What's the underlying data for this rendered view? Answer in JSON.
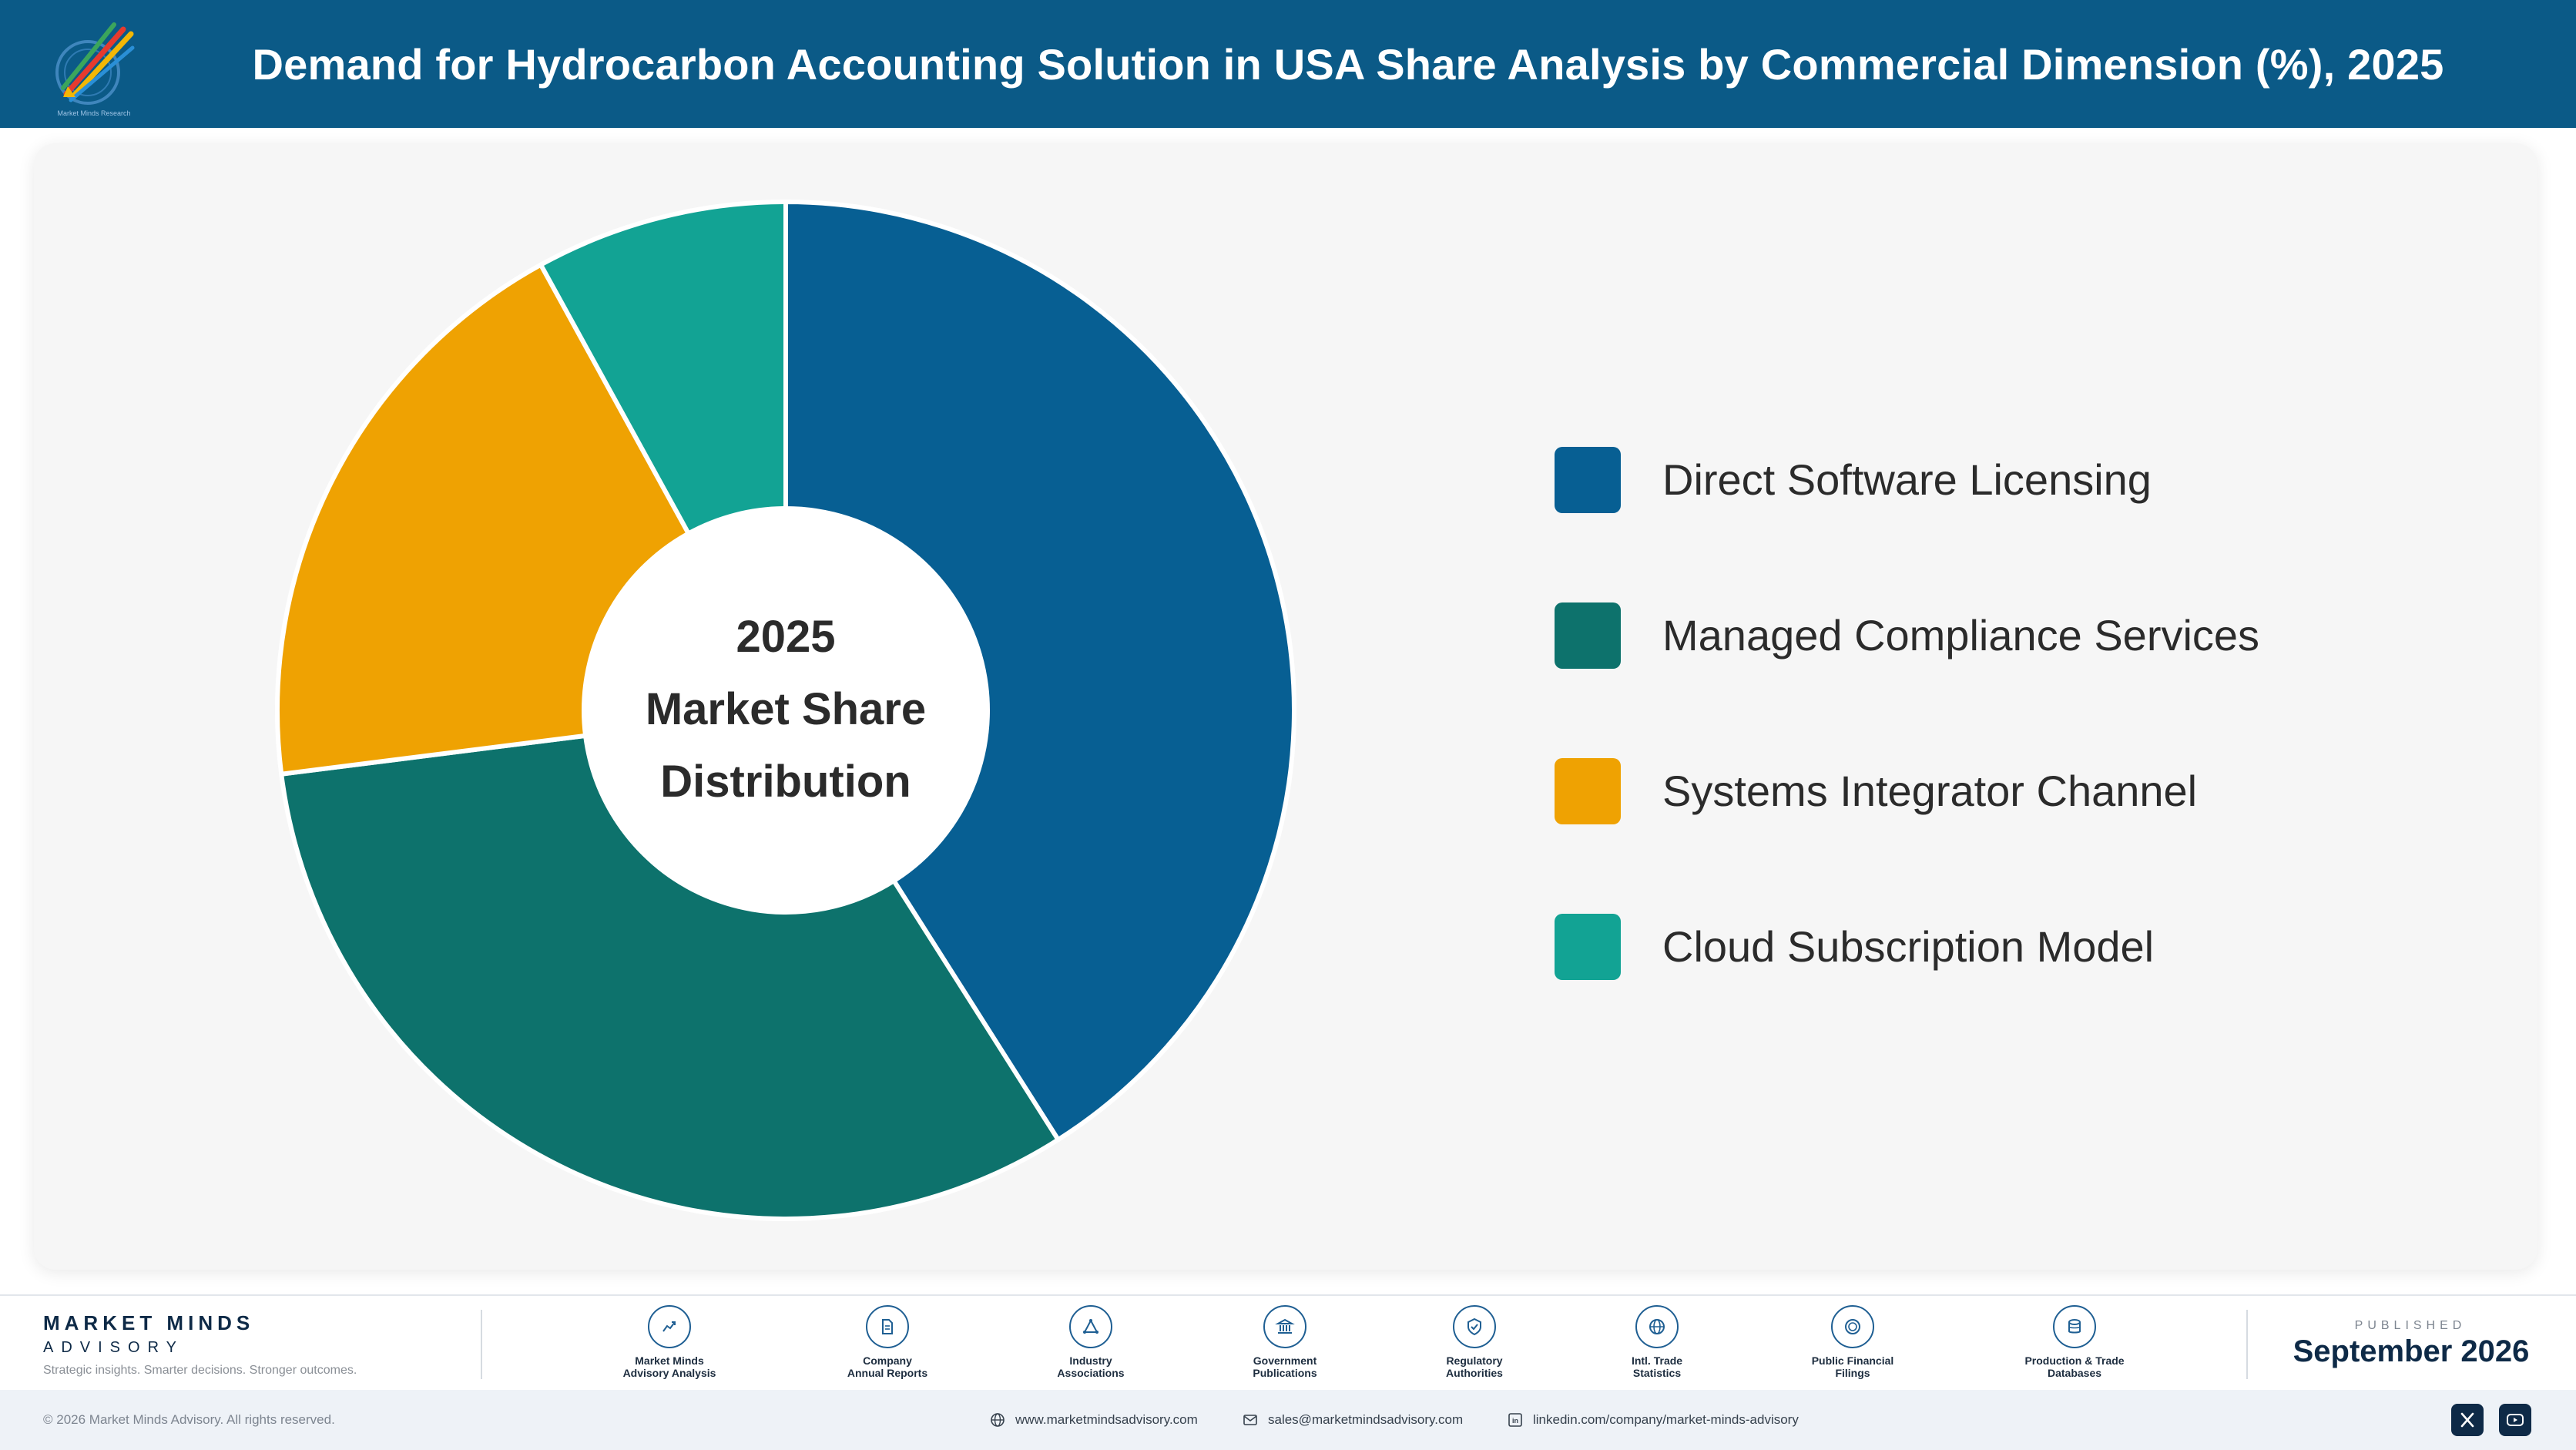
{
  "header": {
    "title": "Demand for Hydrocarbon Accounting Solution in USA Share Analysis by Commercial Dimension (%), 2025",
    "logo_caption": "Market Minds Research"
  },
  "chart_data": {
    "type": "pie",
    "variant": "donut",
    "center_label": [
      "2025",
      "Market Share",
      "Distribution"
    ],
    "categories": [
      "Direct Software Licensing",
      "Managed Compliance Services",
      "Systems Integrator Channel",
      "Cloud Subscription Model"
    ],
    "values": [
      41,
      32,
      19,
      8
    ],
    "colors": [
      "#075f93",
      "#0d726c",
      "#efa202",
      "#12a394"
    ],
    "legend_position": "right"
  },
  "footer": {
    "brand_name": "MARKET MINDS",
    "brand_sub": "ADVISORY",
    "tagline": "Strategic insights. Smarter decisions. Stronger outcomes.",
    "sources": [
      {
        "icon": "trend-chart-icon",
        "label": [
          "Market Minds",
          "Advisory Analysis"
        ]
      },
      {
        "icon": "document-icon",
        "label": [
          "Company",
          "Annual Reports"
        ]
      },
      {
        "icon": "network-icon",
        "label": [
          "Industry",
          "Associations"
        ]
      },
      {
        "icon": "building-icon",
        "label": [
          "Government",
          "Publications"
        ]
      },
      {
        "icon": "shield-check-icon",
        "label": [
          "Regulatory",
          "Authorities"
        ]
      },
      {
        "icon": "globe-icon",
        "label": [
          "Intl. Trade",
          "Statistics"
        ]
      },
      {
        "icon": "coin-icon",
        "label": [
          "Public Financial",
          "Filings"
        ]
      },
      {
        "icon": "database-icon",
        "label": [
          "Production & Trade",
          "Databases"
        ]
      }
    ],
    "published_label": "PUBLISHED",
    "published_date": "September 2026",
    "copyright": "© 2026 Market Minds Advisory. All rights reserved.",
    "website": "www.marketmindsadvisory.com",
    "email": "sales@marketmindsadvisory.com",
    "linkedin": "linkedin.com/company/market-minds-advisory"
  }
}
